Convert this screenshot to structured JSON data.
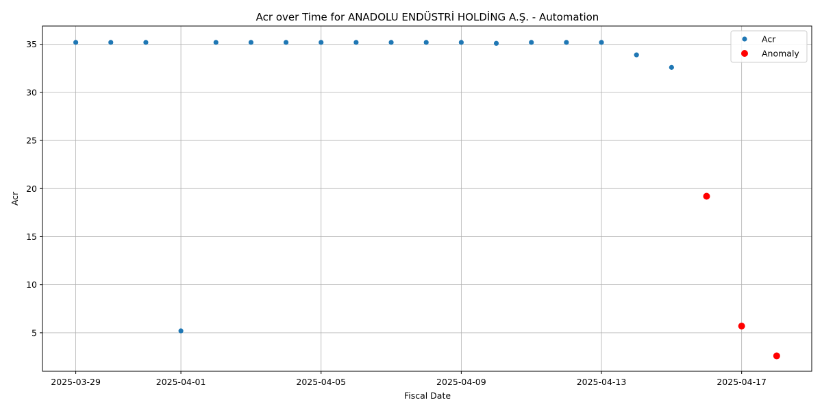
{
  "chart_data": {
    "type": "scatter",
    "title": "Acr over Time for ANADOLU ENDÜSTRİ HOLDİNG A.Ş. - Automation",
    "xlabel": "Fiscal Date",
    "ylabel": "Acr",
    "x_range": [
      "2025-03-28",
      "2025-04-18"
    ],
    "xlim": [
      -0.95,
      21.0
    ],
    "ylim": [
      1.0,
      36.9
    ],
    "x_ticks": [
      "2025-03-29",
      "2025-04-01",
      "2025-04-05",
      "2025-04-09",
      "2025-04-13",
      "2025-04-17"
    ],
    "y_ticks": [
      5,
      10,
      15,
      20,
      25,
      30,
      35
    ],
    "grid": true,
    "legend_position": "top-right",
    "series": [
      {
        "name": "Acr",
        "color": "#1f77b4",
        "points": [
          {
            "x": "2025-03-29",
            "y": 35.2
          },
          {
            "x": "2025-03-30",
            "y": 35.2
          },
          {
            "x": "2025-03-31",
            "y": 35.2
          },
          {
            "x": "2025-04-01",
            "y": 5.2
          },
          {
            "x": "2025-04-02",
            "y": 35.2
          },
          {
            "x": "2025-04-03",
            "y": 35.2
          },
          {
            "x": "2025-04-04",
            "y": 35.2
          },
          {
            "x": "2025-04-05",
            "y": 35.2
          },
          {
            "x": "2025-04-06",
            "y": 35.2
          },
          {
            "x": "2025-04-07",
            "y": 35.2
          },
          {
            "x": "2025-04-08",
            "y": 35.2
          },
          {
            "x": "2025-04-09",
            "y": 35.2
          },
          {
            "x": "2025-04-10",
            "y": 35.1
          },
          {
            "x": "2025-04-11",
            "y": 35.2
          },
          {
            "x": "2025-04-12",
            "y": 35.2
          },
          {
            "x": "2025-04-13",
            "y": 35.2
          },
          {
            "x": "2025-04-14",
            "y": 33.9
          },
          {
            "x": "2025-04-15",
            "y": 32.6
          }
        ]
      },
      {
        "name": "Anomaly",
        "color": "#ff0000",
        "points": [
          {
            "x": "2025-04-16",
            "y": 19.2
          },
          {
            "x": "2025-04-17",
            "y": 5.7
          },
          {
            "x": "2025-04-18",
            "y": 2.6
          }
        ]
      }
    ]
  }
}
